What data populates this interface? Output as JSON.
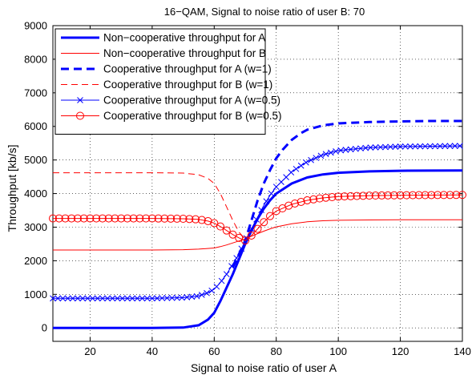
{
  "chart_data": {
    "type": "line",
    "title": "16−QAM, Signal to noise ratio of user B:  70",
    "xlabel": "Signal to noise ratio of user A",
    "ylabel": "Throughput [kb/s]",
    "xlim": [
      8,
      140
    ],
    "ylim": [
      -400,
      9000
    ],
    "xticks": [
      20,
      40,
      60,
      80,
      100,
      120,
      140
    ],
    "yticks": [
      0,
      1000,
      2000,
      3000,
      4000,
      5000,
      6000,
      7000,
      8000,
      9000
    ],
    "grid": true,
    "legend_position": "top-left",
    "series": [
      {
        "name": "Non−cooperative throughput for A",
        "color": "#0000ff",
        "style": "solid-thick",
        "marker": "none",
        "x": [
          8,
          20,
          40,
          50,
          55,
          58,
          60,
          62,
          64,
          66,
          68,
          70,
          72,
          74,
          76,
          78,
          80,
          85,
          90,
          95,
          100,
          110,
          120,
          130,
          140
        ],
        "y": [
          0,
          0,
          0,
          10,
          80,
          250,
          450,
          800,
          1200,
          1600,
          2050,
          2500,
          2900,
          3250,
          3550,
          3800,
          4000,
          4300,
          4480,
          4570,
          4620,
          4660,
          4680,
          4685,
          4690
        ]
      },
      {
        "name": "Non−cooperative throughput for B",
        "color": "#ff0000",
        "style": "solid-thin",
        "marker": "none",
        "x": [
          8,
          20,
          40,
          50,
          55,
          60,
          62,
          64,
          66,
          68,
          70,
          72,
          74,
          76,
          78,
          80,
          85,
          90,
          95,
          100,
          110,
          120,
          130,
          140
        ],
        "y": [
          2320,
          2320,
          2320,
          2330,
          2345,
          2380,
          2420,
          2470,
          2530,
          2590,
          2650,
          2730,
          2810,
          2880,
          2950,
          3010,
          3100,
          3160,
          3190,
          3205,
          3215,
          3220,
          3220,
          3220
        ]
      },
      {
        "name": "Cooperative throughput for A (w=1)",
        "color": "#0000ff",
        "style": "dashed-thick",
        "marker": "none",
        "x": [
          66,
          68,
          70,
          72,
          74,
          76,
          78,
          80,
          82,
          85,
          88,
          90,
          95,
          100,
          110,
          120,
          130,
          140
        ],
        "y": [
          1800,
          2200,
          2600,
          3200,
          3800,
          4300,
          4700,
          5050,
          5300,
          5600,
          5800,
          5900,
          6030,
          6090,
          6130,
          6150,
          6160,
          6160
        ]
      },
      {
        "name": "Cooperative throughput for B (w=1)",
        "color": "#ff0000",
        "style": "dashed-thin",
        "marker": "none",
        "x": [
          8,
          20,
          40,
          50,
          55,
          58,
          60,
          62,
          64,
          66,
          68,
          70
        ],
        "y": [
          4620,
          4620,
          4620,
          4610,
          4560,
          4450,
          4300,
          4000,
          3600,
          3200,
          2850,
          2650
        ]
      },
      {
        "name": "Cooperative throughput for A (w=0.5)",
        "color": "#0000ff",
        "style": "solid-thin",
        "marker": "x",
        "x": [
          8,
          20,
          40,
          50,
          55,
          58,
          60,
          62,
          64,
          66,
          68,
          70,
          72,
          74,
          76,
          78,
          80,
          85,
          90,
          95,
          100,
          110,
          120,
          130,
          140
        ],
        "y": [
          880,
          880,
          880,
          900,
          950,
          1050,
          1150,
          1350,
          1600,
          1900,
          2200,
          2600,
          2950,
          3300,
          3650,
          3950,
          4200,
          4650,
          4950,
          5150,
          5280,
          5370,
          5400,
          5410,
          5420
        ]
      },
      {
        "name": "Cooperative throughput for B (w=0.5)",
        "color": "#ff0000",
        "style": "solid-thin",
        "marker": "circle",
        "x": [
          8,
          20,
          40,
          50,
          55,
          58,
          60,
          62,
          64,
          66,
          68,
          70,
          72,
          74,
          76,
          78,
          80,
          85,
          90,
          95,
          100,
          110,
          120,
          130,
          140
        ],
        "y": [
          3260,
          3260,
          3260,
          3250,
          3230,
          3180,
          3120,
          3020,
          2900,
          2780,
          2680,
          2600,
          2750,
          2950,
          3150,
          3330,
          3480,
          3680,
          3800,
          3870,
          3910,
          3940,
          3950,
          3955,
          3960
        ]
      }
    ]
  }
}
